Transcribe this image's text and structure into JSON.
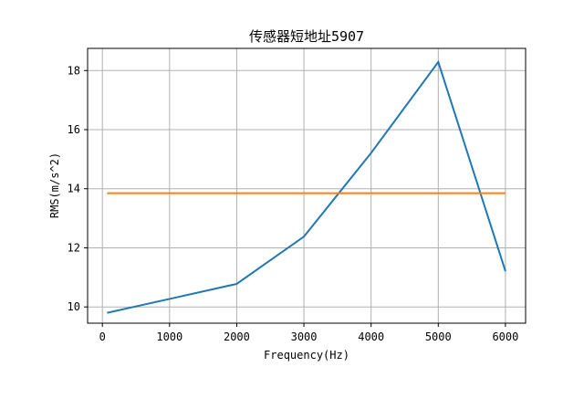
{
  "chart_data": {
    "type": "line",
    "title": "传感器短地址5907",
    "xlabel": "Frequency(Hz)",
    "ylabel": "RMS(m/s^2)",
    "xlim": [
      -220,
      6300
    ],
    "ylim": [
      9.45,
      18.75
    ],
    "xticks": [
      0,
      1000,
      2000,
      3000,
      4000,
      5000,
      6000
    ],
    "yticks": [
      10,
      12,
      14,
      16,
      18
    ],
    "grid": true,
    "series": [
      {
        "color": "#1f77b4",
        "x": [
          70,
          1000,
          2000,
          3000,
          4000,
          5000,
          6000
        ],
        "y": [
          9.8,
          10.27,
          10.78,
          12.38,
          15.21,
          18.29,
          11.21
        ]
      },
      {
        "color": "#ff7f0e",
        "x": [
          70,
          6000
        ],
        "y": [
          13.85,
          13.85
        ]
      }
    ]
  }
}
